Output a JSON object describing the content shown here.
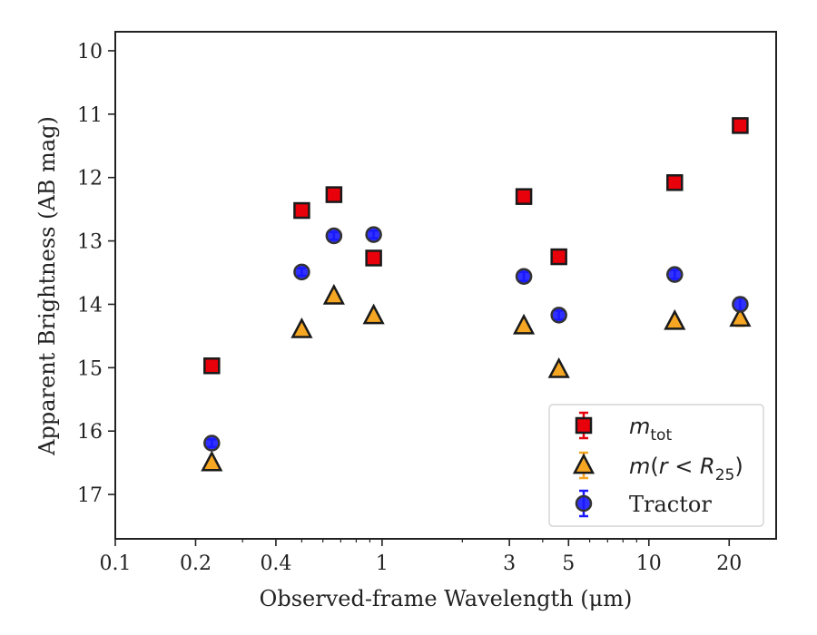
{
  "chart_data": {
    "type": "scatter",
    "xlabel": "Observed-frame Wavelength (μm)",
    "ylabel": "Apparent Brightness (AB mag)",
    "x_scale": "log",
    "y_inverted": true,
    "xlim": [
      0.1,
      30
    ],
    "ylim": [
      17.7,
      9.7
    ],
    "x_ticks": [
      0.1,
      0.2,
      0.4,
      1,
      3,
      5,
      10,
      20
    ],
    "x_tick_labels": [
      "0.1",
      "0.2",
      "0.4",
      "1",
      "3",
      "5",
      "10",
      "20"
    ],
    "y_ticks": [
      10,
      11,
      12,
      13,
      14,
      15,
      16,
      17
    ],
    "y_tick_labels": [
      "10",
      "11",
      "12",
      "13",
      "14",
      "15",
      "16",
      "17"
    ],
    "grid": false,
    "legend_position": "lower right",
    "series": [
      {
        "name": "m_tot",
        "marker": "square",
        "face_color": "#e8000b",
        "edge_color": "#1a1a1a",
        "err_color": "#e8000b",
        "x": [
          0.23,
          0.5,
          0.66,
          0.93,
          3.4,
          4.6,
          12.5,
          22.0
        ],
        "y": [
          14.97,
          12.52,
          12.27,
          13.27,
          12.3,
          13.25,
          12.08,
          11.18
        ],
        "err": [
          0.04,
          0.04,
          0.04,
          0.04,
          0.04,
          0.05,
          0.05,
          0.06
        ]
      },
      {
        "name": "m(r < R25)",
        "marker": "triangle",
        "face_color": "#f5a623",
        "edge_color": "#1a1a1a",
        "err_color": "#f5a623",
        "x": [
          0.23,
          0.5,
          0.66,
          0.93,
          3.4,
          4.6,
          12.5,
          22.0
        ],
        "y": [
          16.5,
          14.4,
          13.87,
          14.18,
          14.34,
          15.03,
          14.27,
          14.22
        ],
        "err": [
          0.03,
          0.03,
          0.03,
          0.03,
          0.04,
          0.04,
          0.05,
          0.12
        ]
      },
      {
        "name": "Tractor",
        "marker": "circle",
        "face_color": "#1a1aff",
        "edge_color": "#333333",
        "err_color": "#1a1aff",
        "x": [
          0.23,
          0.5,
          0.66,
          0.93,
          3.4,
          4.6,
          12.5,
          22.0
        ],
        "y": [
          16.19,
          13.49,
          12.92,
          12.9,
          13.56,
          14.17,
          13.53,
          14.0
        ],
        "err": [
          0.06,
          0.06,
          0.06,
          0.06,
          0.07,
          0.07,
          0.07,
          0.1
        ]
      }
    ],
    "legend": [
      {
        "label_main": "m",
        "label_sub": "tot",
        "series": 0
      },
      {
        "label_main": "m(r < R",
        "label_sub": "25",
        "label_tail": ")",
        "series": 1
      },
      {
        "label_main": "Tractor",
        "series": 2
      }
    ]
  }
}
